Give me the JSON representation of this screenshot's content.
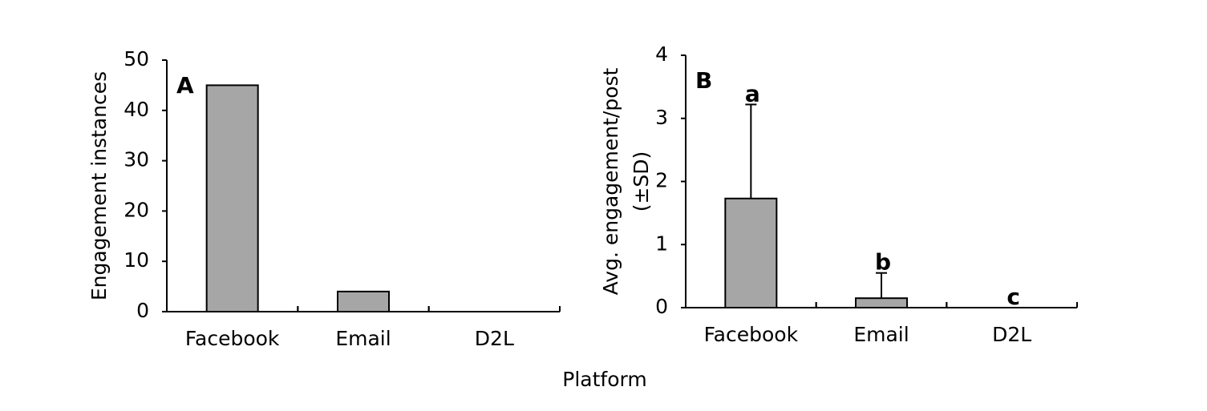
{
  "chart_data": [
    {
      "type": "bar",
      "panel": "A",
      "ylabel": "Engagement instances",
      "categories": [
        "Facebook",
        "Email",
        "D2L"
      ],
      "values": [
        45,
        4,
        0
      ],
      "color": "#a6a6a6",
      "ylim": [
        0,
        50
      ],
      "yticks": [
        0,
        10,
        20,
        30,
        40,
        50
      ]
    },
    {
      "type": "bar",
      "panel": "B",
      "ylabel": [
        "Avg. engagement/post",
        "(±SD)"
      ],
      "categories": [
        "Facebook",
        "Email",
        "D2L"
      ],
      "values": [
        1.73,
        0.15,
        0
      ],
      "errors": [
        1.49,
        0.4,
        0
      ],
      "letters": [
        "a",
        "b",
        "c"
      ],
      "color": "#a6a6a6",
      "ylim": [
        0,
        4
      ],
      "yticks": [
        0,
        1,
        2,
        3,
        4
      ]
    }
  ],
  "xlabel": "Platform"
}
